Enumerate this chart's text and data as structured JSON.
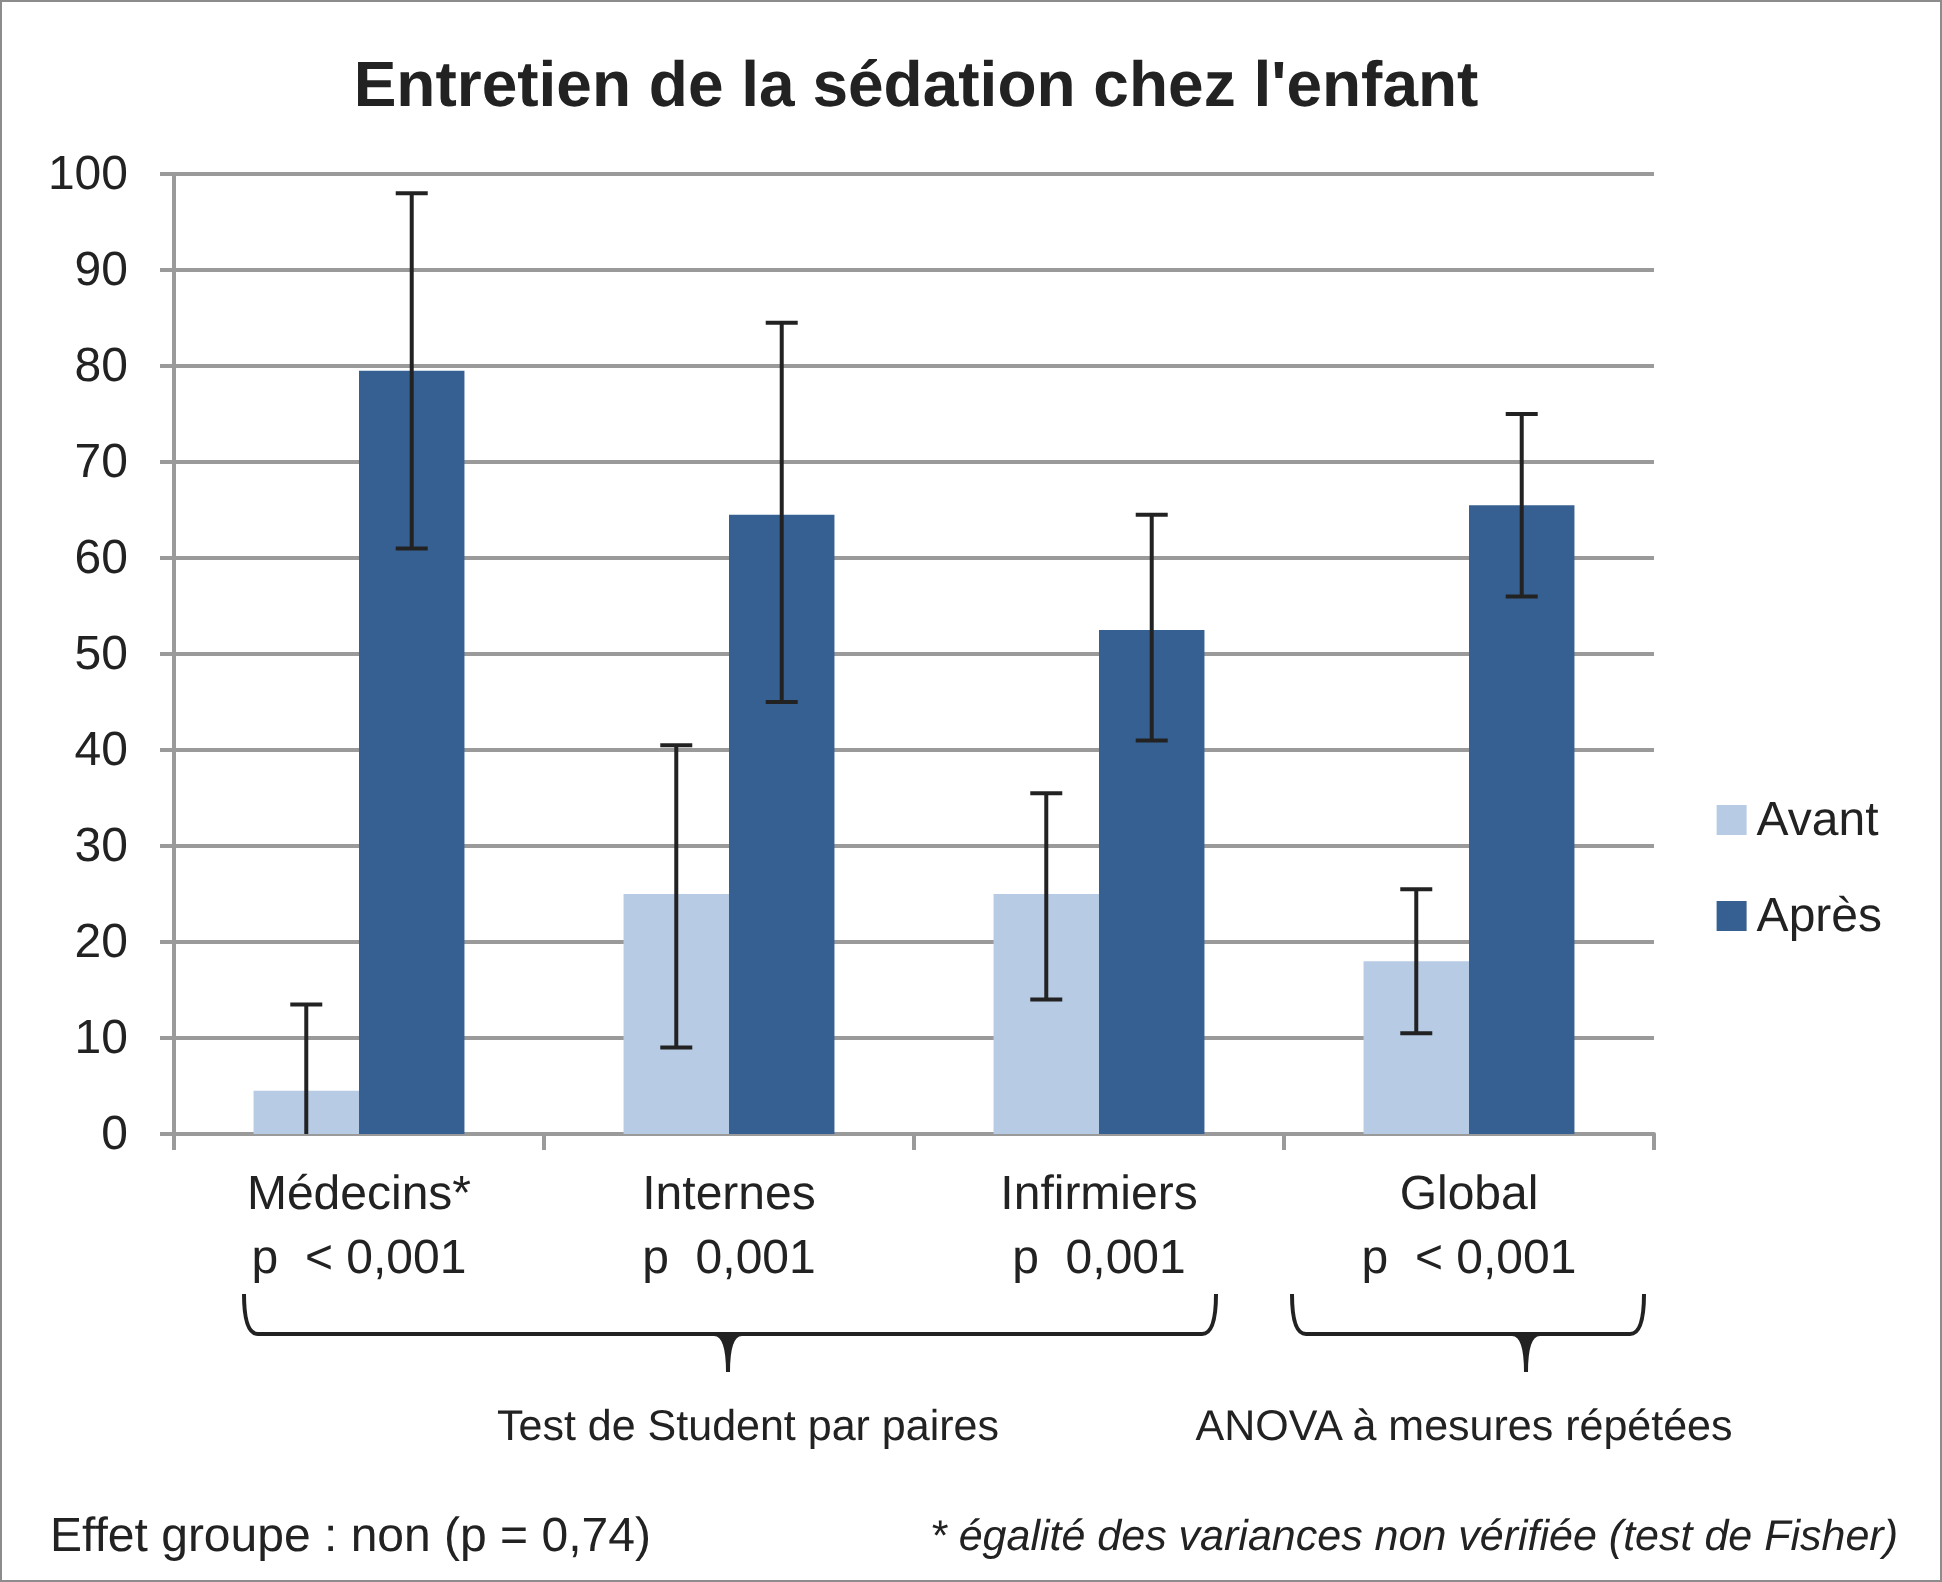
{
  "chart_data": {
    "type": "bar",
    "title": "Entretien de la sédation chez l'enfant",
    "categories": [
      "Médecins*\np  < 0,001",
      "Internes\np  0,001",
      "Infirmiers\np  0,001",
      "Global\np  < 0,001"
    ],
    "series": [
      {
        "name": "Avant",
        "color": "#b7cbe4",
        "values": [
          4.5,
          25,
          25,
          18
        ],
        "errors": [
          [
            0,
            13.5
          ],
          [
            9,
            40.5
          ],
          [
            14,
            35.5
          ],
          [
            10.5,
            25.5
          ]
        ]
      },
      {
        "name": "Après",
        "color": "#366092",
        "values": [
          79.5,
          64.5,
          52.5,
          65.5
        ],
        "errors": [
          [
            61,
            98
          ],
          [
            45,
            84.5
          ],
          [
            41,
            64.5
          ],
          [
            56,
            75
          ]
        ]
      }
    ],
    "ylim": [
      0,
      100
    ],
    "yticks": [
      0,
      10,
      20,
      30,
      40,
      50,
      60,
      70,
      80,
      90,
      100
    ],
    "grid": "y",
    "legend": "right",
    "annotations": [
      "Test de Student par paires",
      "ANOVA à mesures répétées",
      "Effet groupe : non (p = 0,74)",
      "* égalité des variances non vérifiée (test de Fisher)"
    ]
  }
}
